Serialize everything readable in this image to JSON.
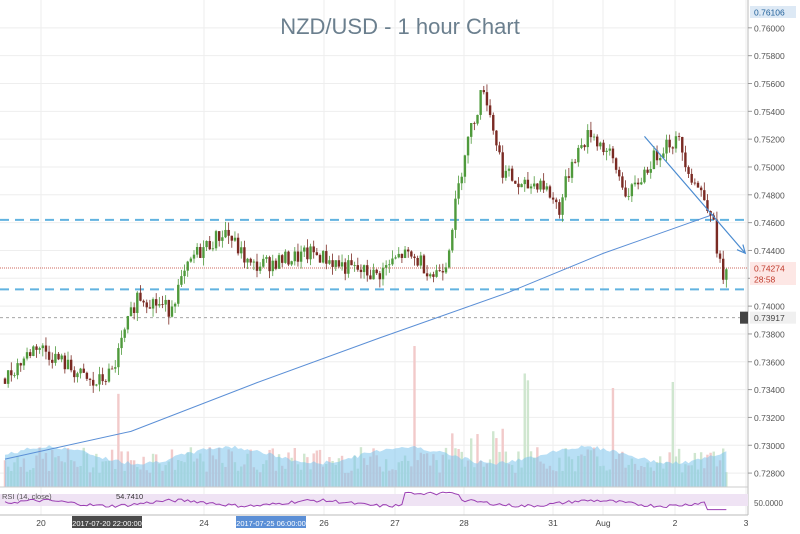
{
  "window": {
    "title": "NZD/USD - 1 hour Chart"
  },
  "colors": {
    "up": "#4f9a3c",
    "down": "#7a2a23",
    "sma": "#5b8fd6",
    "trend": "#4a8bd0",
    "support": "#62b3e0",
    "price_line": "#c03a2b",
    "volume_up": "#cfe6cf",
    "volume_down": "#f2caca",
    "volume_ma": "#7ec4ec",
    "rsi": "#9b3fb3",
    "rsi_band": "#efe3f4",
    "grid": "#eeeeee"
  },
  "chart_data": {
    "type": "candlestick",
    "title": "NZD/USD - 1 hour Chart",
    "ylim": [
      0.727,
      0.762
    ],
    "y_ticks": [
      "0.76000",
      "0.75800",
      "0.75600",
      "0.75400",
      "0.75200",
      "0.75000",
      "0.74800",
      "0.74600",
      "0.74400",
      "0.74200",
      "0.74000",
      "0.73800",
      "0.73600",
      "0.73400",
      "0.73200",
      "0.73000",
      "0.72800"
    ],
    "x_ticks": [
      "20",
      "24",
      "26",
      "27",
      "28",
      "31",
      "Aug",
      "2",
      "3"
    ],
    "x_highlight_labels": [
      "2017-07-20 22:00:00",
      "2017-07-25 06:00:00"
    ],
    "price_tags": {
      "top": "0.76106",
      "last": "0.74274",
      "countdown": "28:58",
      "grey": "0.73917"
    },
    "support_levels": [
      0.7462,
      0.7412
    ],
    "candle_count": 230,
    "price_path": [
      [
        0,
        0.7348
      ],
      [
        10,
        0.7372
      ],
      [
        18,
        0.736
      ],
      [
        28,
        0.7343
      ],
      [
        34,
        0.7352
      ],
      [
        42,
        0.7408
      ],
      [
        52,
        0.7398
      ],
      [
        60,
        0.7436
      ],
      [
        70,
        0.7454
      ],
      [
        78,
        0.7428
      ],
      [
        88,
        0.7433
      ],
      [
        98,
        0.7438
      ],
      [
        108,
        0.7428
      ],
      [
        118,
        0.7422
      ],
      [
        126,
        0.7437
      ],
      [
        132,
        0.7432
      ],
      [
        136,
        0.7422
      ],
      [
        140,
        0.7432
      ],
      [
        146,
        0.7512
      ],
      [
        152,
        0.7558
      ],
      [
        158,
        0.7498
      ],
      [
        164,
        0.7484
      ],
      [
        170,
        0.749
      ],
      [
        176,
        0.747
      ],
      [
        180,
        0.7505
      ],
      [
        186,
        0.7525
      ],
      [
        192,
        0.7508
      ],
      [
        198,
        0.7478
      ],
      [
        204,
        0.75
      ],
      [
        210,
        0.7518
      ],
      [
        214,
        0.7518
      ],
      [
        218,
        0.7493
      ],
      [
        222,
        0.7478
      ],
      [
        224,
        0.747
      ],
      [
        226,
        0.7443
      ],
      [
        228,
        0.7418
      ],
      [
        230,
        0.7427
      ]
    ],
    "sma": [
      [
        0,
        0.729
      ],
      [
        40,
        0.731
      ],
      [
        80,
        0.7345
      ],
      [
        120,
        0.7378
      ],
      [
        160,
        0.741
      ],
      [
        190,
        0.7438
      ],
      [
        215,
        0.7458
      ],
      [
        225,
        0.7466
      ]
    ],
    "trend_line": [
      [
        203,
        0.7522
      ],
      [
        235,
        0.7438
      ]
    ],
    "rsi": {
      "label": "RSI (14, close)",
      "value": "54.7410",
      "level": "50.0000"
    }
  }
}
